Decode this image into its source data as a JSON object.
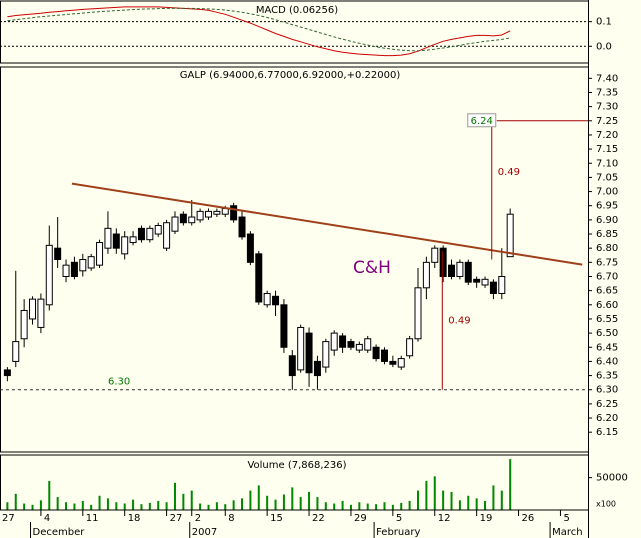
{
  "chart_data": [
    {
      "type": "line",
      "title": "MACD (0.06256)",
      "ylim": [
        -0.068,
        0.184
      ],
      "yticks": [
        0.1,
        {
          "value": 0,
          "label": "0.0"
        }
      ],
      "grid": true,
      "series": [
        {
          "name": null,
          "color": "#cc0000",
          "values": [
            null,
            0.12,
            0.125,
            0.128,
            0.131,
            0.134,
            0.138,
            0.141,
            0.144,
            0.147,
            0.15,
            0.152,
            0.154,
            0.156,
            0.158,
            0.16,
            0.16,
            0.16,
            0.16,
            0.16,
            0.158,
            0.156,
            0.154,
            0.152,
            0.15,
            0.146,
            0.138,
            0.13,
            0.118,
            0.106,
            0.094,
            0.08,
            0.066,
            0.052,
            0.04,
            0.028,
            0.018,
            0.008,
            -0.002,
            -0.01,
            -0.018,
            -0.024,
            -0.028,
            -0.032,
            -0.034,
            -0.036,
            -0.038,
            -0.038,
            -0.036,
            -0.03,
            -0.02,
            -0.006,
            0.008,
            0.02,
            0.028,
            0.034,
            0.04,
            0.044,
            0.044,
            0.042,
            0.046,
            0.063,
            null,
            null,
            null,
            null,
            null,
            null,
            null,
            null,
            null
          ]
        },
        {
          "name": null,
          "color": "#336633",
          "dashed": true,
          "values": [
            null,
            0.104,
            0.108,
            0.112,
            0.116,
            0.12,
            0.123,
            0.126,
            0.129,
            0.132,
            0.135,
            0.138,
            0.141,
            0.143,
            0.145,
            0.147,
            0.149,
            0.151,
            0.152,
            0.153,
            0.154,
            0.154,
            0.154,
            0.154,
            0.153,
            0.152,
            0.15,
            0.147,
            0.143,
            0.138,
            0.132,
            0.125,
            0.117,
            0.108,
            0.098,
            0.088,
            0.078,
            0.068,
            0.058,
            0.048,
            0.038,
            0.029,
            0.02,
            0.012,
            0.005,
            -0.002,
            -0.008,
            -0.012,
            -0.016,
            -0.018,
            -0.018,
            -0.016,
            -0.012,
            -0.007,
            -0.002,
            0.004,
            0.01,
            0.015,
            0.02,
            0.024,
            0.028,
            0.034,
            null,
            null,
            null,
            null,
            null,
            null,
            null,
            null,
            null
          ]
        }
      ]
    },
    {
      "type": "candlestick",
      "title": "GALP (6.94000,6.77000,6.92000,+0.22000)",
      "categories": [
        "27",
        null,
        null,
        null,
        null,
        "4",
        null,
        null,
        null,
        null,
        "11",
        null,
        null,
        null,
        null,
        "18",
        null,
        null,
        null,
        null,
        "27",
        null,
        null,
        "2",
        null,
        null,
        null,
        "8",
        null,
        null,
        null,
        null,
        "15",
        null,
        null,
        null,
        null,
        "22",
        null,
        null,
        null,
        null,
        "29",
        null,
        null,
        null,
        null,
        "5",
        null,
        null,
        null,
        null,
        "12",
        null,
        null,
        null,
        null,
        "19",
        null,
        null,
        null,
        null,
        "26",
        null,
        null,
        null,
        null,
        "5",
        null,
        null,
        null
      ],
      "months": [
        {
          "label": "December",
          "at": 4
        },
        {
          "label": "2007",
          "at": 23
        },
        {
          "label": "February",
          "at": 45
        },
        {
          "label": "March",
          "at": 66
        }
      ],
      "open": [
        null,
        6.37,
        6.4,
        6.48,
        6.55,
        6.52,
        6.6,
        6.8,
        6.7,
        6.75,
        6.72,
        6.73,
        6.74,
        6.8,
        6.85,
        6.78,
        6.82,
        6.87,
        6.83,
        6.85,
        6.8,
        6.86,
        6.92,
        6.89,
        6.9,
        6.91,
        6.92,
        6.92,
        6.95,
        6.91,
        6.85,
        6.78,
        6.6,
        6.63,
        6.6,
        6.42,
        6.37,
        6.5,
        6.4,
        6.38,
        6.44,
        6.49,
        6.47,
        6.44,
        6.44,
        6.45,
        6.44,
        6.4,
        6.38,
        6.42,
        6.48,
        6.66,
        6.75,
        6.8,
        6.74,
        6.7,
        6.75,
        6.69,
        6.67,
        6.68,
        6.64,
        6.77,
        null,
        null,
        null,
        null,
        null,
        null,
        null,
        null,
        null
      ],
      "high": [
        null,
        6.38,
        6.72,
        6.62,
        6.63,
        6.64,
        6.88,
        6.91,
        6.76,
        6.77,
        6.78,
        6.78,
        6.83,
        6.93,
        6.87,
        6.86,
        6.86,
        6.88,
        6.88,
        6.89,
        6.9,
        6.93,
        6.93,
        6.97,
        6.94,
        6.94,
        6.94,
        6.95,
        6.96,
        6.93,
        6.86,
        6.79,
        6.65,
        6.65,
        6.62,
        6.44,
        6.53,
        6.52,
        6.42,
        6.48,
        6.51,
        6.5,
        6.48,
        6.47,
        6.49,
        6.46,
        6.45,
        6.42,
        6.42,
        6.49,
        6.73,
        6.77,
        6.81,
        6.81,
        6.76,
        6.76,
        6.76,
        6.7,
        6.7,
        6.69,
        6.8,
        6.94,
        null,
        null,
        null,
        null,
        null,
        null,
        null,
        null,
        null
      ],
      "low": [
        null,
        6.33,
        6.38,
        6.45,
        6.53,
        6.5,
        6.58,
        6.73,
        6.68,
        6.69,
        6.7,
        6.72,
        6.73,
        6.78,
        6.78,
        6.76,
        6.81,
        6.82,
        6.82,
        6.84,
        6.79,
        6.85,
        6.88,
        6.88,
        6.89,
        6.9,
        6.91,
        6.91,
        6.89,
        6.83,
        6.74,
        6.6,
        6.59,
        6.56,
        6.43,
        6.3,
        6.36,
        6.31,
        6.3,
        6.36,
        6.42,
        6.43,
        6.44,
        6.43,
        6.43,
        6.4,
        6.39,
        6.38,
        6.37,
        6.41,
        6.47,
        6.62,
        6.73,
        6.68,
        6.69,
        6.69,
        6.67,
        6.66,
        6.66,
        6.62,
        6.62,
        6.77,
        null,
        null,
        null,
        null,
        null,
        null,
        null,
        null,
        null
      ],
      "close": [
        null,
        6.35,
        6.47,
        6.58,
        6.62,
        6.62,
        6.81,
        6.76,
        6.74,
        6.7,
        6.76,
        6.77,
        6.82,
        6.87,
        6.8,
        6.84,
        6.84,
        6.83,
        6.87,
        6.88,
        6.89,
        6.91,
        6.89,
        6.91,
        6.93,
        6.93,
        6.93,
        6.94,
        6.9,
        6.84,
        6.75,
        6.61,
        6.64,
        6.6,
        6.45,
        6.35,
        6.52,
        6.36,
        6.35,
        6.47,
        6.5,
        6.45,
        6.45,
        6.46,
        6.48,
        6.41,
        6.4,
        6.39,
        6.41,
        6.48,
        6.66,
        6.75,
        6.8,
        6.7,
        6.7,
        6.75,
        6.68,
        6.68,
        6.69,
        6.64,
        6.7,
        6.92,
        null,
        null,
        null,
        null,
        null,
        null,
        null,
        null,
        null
      ],
      "ylim": [
        6.08,
        7.44
      ],
      "yticks": [
        6.15,
        {
          "value": 6.2,
          "label": "6.20"
        },
        6.25,
        {
          "value": 6.3,
          "label": "6.30"
        },
        6.35,
        {
          "value": 6.4,
          "label": "6.40"
        },
        6.45,
        {
          "value": 6.5,
          "label": "6.50"
        },
        6.55,
        {
          "value": 6.6,
          "label": "6.60"
        },
        6.65,
        {
          "value": 6.7,
          "label": "6.70"
        },
        6.75,
        {
          "value": 6.8,
          "label": "6.80"
        },
        6.85,
        {
          "value": 6.9,
          "label": "6.90"
        },
        6.95,
        {
          "value": 7.0,
          "label": "7.00"
        },
        7.05,
        {
          "value": 7.1,
          "label": "7.10"
        },
        7.15,
        {
          "value": 7.2,
          "label": "7.20"
        },
        7.25,
        {
          "value": 7.3,
          "label": "7.30"
        },
        7.35,
        {
          "value": 7.4,
          "label": "7.40"
        }
      ],
      "support": {
        "value": 6.3,
        "label": "6.30",
        "color": "#007700"
      },
      "trendline": {
        "x": [
          8.7,
          69.6
        ],
        "y": [
          7.028,
          6.742
        ],
        "color": "#a0401a"
      },
      "moves": [
        {
          "label": "0.49",
          "x": 52.9,
          "from": 6.79,
          "to": 6.3
        },
        {
          "label": "0.49",
          "x": 58.8,
          "from": 6.76,
          "to": 7.25
        }
      ],
      "move_color": "#a00000",
      "target": {
        "label": "6.24",
        "value": 7.25,
        "x": 58.8,
        "color": "#007700"
      },
      "annotation": "C&H"
    },
    {
      "type": "bar",
      "title": "Volume (7,868,236)",
      "unit_label": "x100",
      "color": "#008800",
      "values": [
        null,
        12000,
        25000,
        10000,
        8000,
        15000,
        45000,
        20000,
        12000,
        10000,
        14000,
        8000,
        22000,
        18000,
        12000,
        10000,
        16000,
        9000,
        11000,
        14000,
        12000,
        42000,
        25000,
        30000,
        10000,
        8000,
        12000,
        9000,
        15000,
        18000,
        30000,
        38000,
        22000,
        16000,
        24000,
        35000,
        20000,
        28000,
        20000,
        12000,
        10000,
        14000,
        8000,
        12000,
        10000,
        9000,
        12000,
        8000,
        11000,
        14000,
        30000,
        45000,
        52000,
        30000,
        28000,
        15000,
        22000,
        18000,
        14000,
        38000,
        30000,
        78682,
        null,
        null,
        null,
        null,
        null,
        null,
        null,
        null,
        null
      ],
      "ylim": [
        0,
        85000
      ],
      "yticks": [
        50000
      ]
    }
  ]
}
